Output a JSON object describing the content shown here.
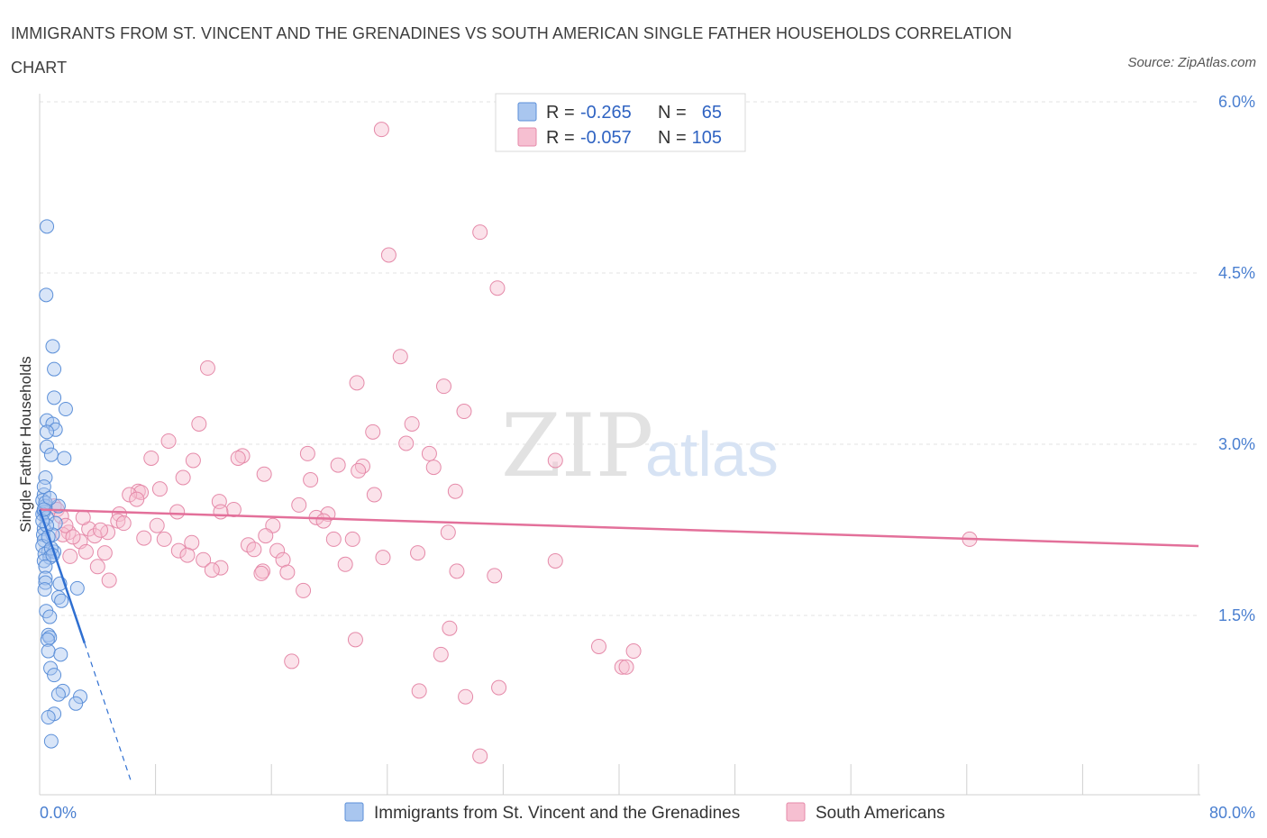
{
  "title": "IMMIGRANTS FROM ST. VINCENT AND THE GRENADINES VS SOUTH AMERICAN SINGLE FATHER HOUSEHOLDS CORRELATION CHART",
  "source": "Source: ZipAtlas.com",
  "watermark": {
    "zip": "ZIP",
    "atlas": "atlas"
  },
  "colors": {
    "blue": "#5b8fd8",
    "blue_fill": "#a9c6ef",
    "blue_line": "#2f6fd1",
    "pink": "#e58aa9",
    "pink_fill": "#f6bfd1",
    "pink_line": "#e3709a",
    "tick_text": "#4a7fd0",
    "grid": "#e3e3e3"
  },
  "legend": {
    "rows": [
      {
        "r_label": "R =",
        "r_value": "-0.265",
        "n_label": "N =",
        "n_value": "65"
      },
      {
        "r_label": "R =",
        "r_value": "-0.057",
        "n_label": "N =",
        "n_value": "105"
      }
    ]
  },
  "bottom_legend": [
    "Immigrants from St. Vincent and the Grenadines",
    "South Americans"
  ],
  "chart_data": {
    "type": "scatter",
    "xlabel": "",
    "ylabel": "Single Father Households",
    "xlim": [
      0,
      80
    ],
    "ylim": [
      0,
      6.0
    ],
    "x_tick_labels": [
      "0.0%",
      "80.0%"
    ],
    "y_tick_labels": [
      "1.5%",
      "3.0%",
      "4.5%",
      "6.0%"
    ],
    "y_ticks": [
      1.5,
      3.0,
      4.5,
      6.0
    ],
    "grid": true,
    "series": [
      {
        "name": "Immigrants from St. Vincent and the Grenadines",
        "color": "#5b8fd8",
        "r": -0.265,
        "n": 65,
        "trend": {
          "x0": 0,
          "y0": 2.42,
          "x1": 3.1,
          "y1": 1.25,
          "dash_to_x": 6.3
        },
        "points": [
          [
            0.5,
            4.9
          ],
          [
            0.45,
            4.3
          ],
          [
            0.9,
            3.85
          ],
          [
            1.0,
            3.65
          ],
          [
            1.0,
            3.4
          ],
          [
            1.8,
            3.3
          ],
          [
            0.5,
            3.2
          ],
          [
            0.9,
            3.17
          ],
          [
            1.1,
            3.12
          ],
          [
            0.5,
            3.1
          ],
          [
            0.5,
            2.97
          ],
          [
            0.8,
            2.9
          ],
          [
            1.7,
            2.87
          ],
          [
            0.4,
            2.7
          ],
          [
            0.3,
            2.55
          ],
          [
            0.2,
            2.5
          ],
          [
            0.4,
            2.45
          ],
          [
            1.3,
            2.45
          ],
          [
            0.3,
            2.4
          ],
          [
            0.2,
            2.38
          ],
          [
            0.5,
            2.35
          ],
          [
            1.1,
            2.3
          ],
          [
            0.3,
            2.25
          ],
          [
            0.25,
            2.2
          ],
          [
            0.9,
            2.2
          ],
          [
            0.3,
            2.15
          ],
          [
            0.2,
            2.1
          ],
          [
            0.6,
            2.05
          ],
          [
            1.0,
            2.05
          ],
          [
            0.35,
            2.03
          ],
          [
            0.7,
            2.0
          ],
          [
            0.3,
            1.97
          ],
          [
            0.4,
            1.92
          ],
          [
            0.4,
            1.82
          ],
          [
            0.4,
            1.78
          ],
          [
            1.4,
            1.77
          ],
          [
            2.6,
            1.73
          ],
          [
            0.35,
            1.72
          ],
          [
            1.3,
            1.65
          ],
          [
            1.5,
            1.62
          ],
          [
            0.45,
            1.53
          ],
          [
            0.7,
            1.48
          ],
          [
            0.6,
            1.32
          ],
          [
            0.7,
            1.3
          ],
          [
            0.55,
            1.28
          ],
          [
            0.6,
            1.18
          ],
          [
            1.45,
            1.15
          ],
          [
            0.75,
            1.03
          ],
          [
            1.0,
            0.97
          ],
          [
            1.6,
            0.83
          ],
          [
            1.3,
            0.8
          ],
          [
            2.8,
            0.78
          ],
          [
            2.5,
            0.72
          ],
          [
            1.0,
            0.63
          ],
          [
            0.6,
            0.6
          ],
          [
            0.8,
            0.39
          ],
          [
            0.3,
            2.62
          ],
          [
            0.5,
            2.28
          ],
          [
            0.6,
            2.18
          ],
          [
            0.8,
            2.08
          ],
          [
            0.2,
            2.32
          ],
          [
            0.4,
            2.48
          ],
          [
            0.9,
            2.02
          ],
          [
            0.7,
            2.52
          ],
          [
            0.3,
            2.42
          ]
        ]
      },
      {
        "name": "South Americans",
        "color": "#e58aa9",
        "r": -0.057,
        "n": 105,
        "trend": {
          "x0": 0,
          "y0": 2.42,
          "x1": 80,
          "y1": 2.1
        },
        "points": [
          [
            23.6,
            5.75
          ],
          [
            30.4,
            4.85
          ],
          [
            24.1,
            4.65
          ],
          [
            31.6,
            4.36
          ],
          [
            24.9,
            3.76
          ],
          [
            11.6,
            3.66
          ],
          [
            21.9,
            3.53
          ],
          [
            27.9,
            3.5
          ],
          [
            29.3,
            3.28
          ],
          [
            11.0,
            3.17
          ],
          [
            25.7,
            3.17
          ],
          [
            23.0,
            3.1
          ],
          [
            8.9,
            3.02
          ],
          [
            25.3,
            3.0
          ],
          [
            26.9,
            2.91
          ],
          [
            18.5,
            2.91
          ],
          [
            14.0,
            2.89
          ],
          [
            13.7,
            2.87
          ],
          [
            7.7,
            2.87
          ],
          [
            10.6,
            2.85
          ],
          [
            35.6,
            2.85
          ],
          [
            20.6,
            2.81
          ],
          [
            22.3,
            2.8
          ],
          [
            27.2,
            2.79
          ],
          [
            22.0,
            2.76
          ],
          [
            15.5,
            2.73
          ],
          [
            9.9,
            2.7
          ],
          [
            18.7,
            2.68
          ],
          [
            8.3,
            2.6
          ],
          [
            6.8,
            2.58
          ],
          [
            28.7,
            2.58
          ],
          [
            7.0,
            2.57
          ],
          [
            6.2,
            2.55
          ],
          [
            23.1,
            2.55
          ],
          [
            6.7,
            2.51
          ],
          [
            12.4,
            2.49
          ],
          [
            17.9,
            2.46
          ],
          [
            1.0,
            2.45
          ],
          [
            1.2,
            2.42
          ],
          [
            9.5,
            2.4
          ],
          [
            13.4,
            2.42
          ],
          [
            12.5,
            2.4
          ],
          [
            5.5,
            2.38
          ],
          [
            19.9,
            2.38
          ],
          [
            1.5,
            2.36
          ],
          [
            19.1,
            2.35
          ],
          [
            5.4,
            2.32
          ],
          [
            19.6,
            2.32
          ],
          [
            5.8,
            2.3
          ],
          [
            8.1,
            2.28
          ],
          [
            16.1,
            2.28
          ],
          [
            3.4,
            2.25
          ],
          [
            4.7,
            2.22
          ],
          [
            28.2,
            2.22
          ],
          [
            2.0,
            2.22
          ],
          [
            1.6,
            2.2
          ],
          [
            15.6,
            2.19
          ],
          [
            3.8,
            2.19
          ],
          [
            7.2,
            2.17
          ],
          [
            8.6,
            2.16
          ],
          [
            21.6,
            2.16
          ],
          [
            20.3,
            2.16
          ],
          [
            2.8,
            2.14
          ],
          [
            10.5,
            2.13
          ],
          [
            64.2,
            2.16
          ],
          [
            14.4,
            2.11
          ],
          [
            14.8,
            2.07
          ],
          [
            9.6,
            2.06
          ],
          [
            16.4,
            2.06
          ],
          [
            3.2,
            2.05
          ],
          [
            26.1,
            2.04
          ],
          [
            4.5,
            2.04
          ],
          [
            10.2,
            2.02
          ],
          [
            2.1,
            2.01
          ],
          [
            16.8,
            1.98
          ],
          [
            11.3,
            1.98
          ],
          [
            23.7,
            2.0
          ],
          [
            35.6,
            1.97
          ],
          [
            21.1,
            1.94
          ],
          [
            4.0,
            1.92
          ],
          [
            12.5,
            1.91
          ],
          [
            11.9,
            1.89
          ],
          [
            15.4,
            1.88
          ],
          [
            17.1,
            1.87
          ],
          [
            28.8,
            1.88
          ],
          [
            15.3,
            1.86
          ],
          [
            31.4,
            1.84
          ],
          [
            4.8,
            1.8
          ],
          [
            18.2,
            1.71
          ],
          [
            28.3,
            1.38
          ],
          [
            21.8,
            1.28
          ],
          [
            38.6,
            1.22
          ],
          [
            41.0,
            1.18
          ],
          [
            27.7,
            1.15
          ],
          [
            17.4,
            1.09
          ],
          [
            40.2,
            1.04
          ],
          [
            40.5,
            1.04
          ],
          [
            31.7,
            0.86
          ],
          [
            26.2,
            0.83
          ],
          [
            29.4,
            0.78
          ],
          [
            30.4,
            0.26
          ],
          [
            1.8,
            2.28
          ],
          [
            3.0,
            2.35
          ],
          [
            2.3,
            2.18
          ],
          [
            4.2,
            2.24
          ]
        ]
      }
    ]
  }
}
